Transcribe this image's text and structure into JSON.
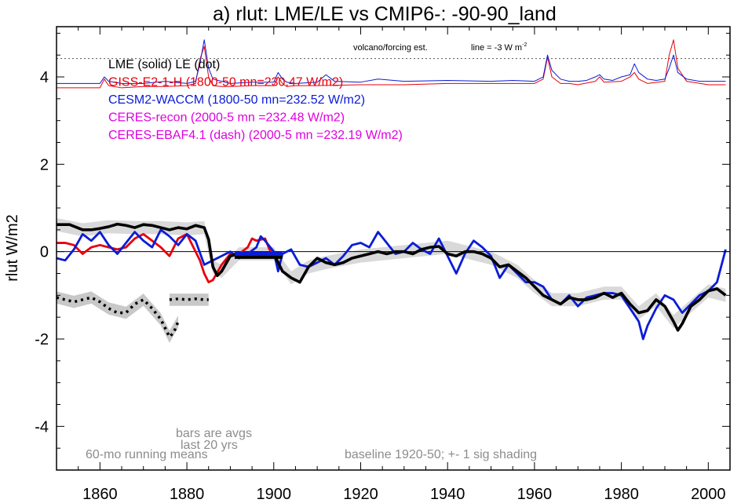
{
  "chart_data": {
    "type": "line",
    "title": "a) rlut: LME/LE vs CMIP6-: -90-90_land",
    "ylabel": "rlut W/m2",
    "xlabel": "",
    "xlim": [
      1850,
      2005
    ],
    "ylim": [
      -5,
      5.15
    ],
    "x_ticks": [
      1860,
      1880,
      1900,
      1920,
      1940,
      1960,
      1980,
      2000
    ],
    "y_ticks": [
      4,
      2,
      0,
      -2,
      -4
    ],
    "y_tick_labels": [
      "4",
      "2",
      "0",
      "-2",
      "-4"
    ],
    "grid": false,
    "zero_line": 0,
    "annotations": {
      "volcano": "volcano/forcing est.",
      "line_note": "line = -3 W m",
      "line_note_sup": "-2",
      "bars_note_1": "bars are avgs",
      "bars_note_2": "last 20 yrs",
      "running_means": "60-mo running means",
      "baseline": "baseline 1920-50; +- 1 sig shading"
    },
    "reference_line": {
      "y": 4.42,
      "style": "dotted"
    },
    "legend": [
      {
        "text": "LME (solid)   LE (dot)",
        "color": "#000000"
      },
      {
        "text": "GISS-E2-1-H (1800-50 mn=230.47 W/m2)",
        "color": "#e8000b"
      },
      {
        "text": "CESM2-WACCM (1800-50 mn=232.52 W/m2)",
        "color": "#0a1cd6"
      },
      {
        "text": "CERES-recon (2000-5 mn =232.48 W/m2)",
        "color": "#e000e0"
      },
      {
        "text": "CERES-EBAF4.1 (dash) (2000-5 mn =232.19 W/m2)",
        "color": "#e000e0"
      }
    ],
    "series": [
      {
        "name": "LME (solid)",
        "color": "#000000",
        "style": "solid",
        "x": [
          1850,
          1853,
          1856,
          1858,
          1860,
          1862,
          1864,
          1866,
          1868,
          1870,
          1872,
          1874,
          1876,
          1878,
          1880,
          1882,
          1884,
          1885,
          1886,
          1887,
          1888,
          1890,
          1892,
          1894,
          1896,
          1898,
          1900,
          1902,
          1904,
          1906,
          1908,
          1910,
          1912,
          1914,
          1916,
          1918,
          1920,
          1922,
          1924,
          1926,
          1928,
          1930,
          1932,
          1934,
          1936,
          1938,
          1940,
          1942,
          1944,
          1946,
          1948,
          1950,
          1952,
          1954,
          1956,
          1958,
          1960,
          1962,
          1964,
          1966,
          1968,
          1970,
          1972,
          1974,
          1976,
          1978,
          1980,
          1982,
          1984,
          1986,
          1988,
          1990,
          1992,
          1993,
          1994,
          1996,
          1998,
          2000,
          2002,
          2004
        ],
        "values": [
          0.62,
          0.62,
          0.5,
          0.5,
          0.53,
          0.57,
          0.63,
          0.6,
          0.55,
          0.62,
          0.6,
          0.55,
          0.5,
          0.55,
          0.52,
          0.6,
          0.55,
          0.28,
          -0.35,
          -0.55,
          -0.45,
          -0.1,
          -0.05,
          -0.08,
          -0.05,
          -0.1,
          -0.05,
          -0.45,
          -0.6,
          -0.7,
          -0.35,
          -0.15,
          -0.25,
          -0.3,
          -0.25,
          -0.15,
          -0.1,
          -0.05,
          0.0,
          -0.05,
          0.0,
          0.0,
          -0.05,
          0.05,
          0.1,
          0.12,
          -0.05,
          -0.1,
          0.0,
          0.0,
          -0.05,
          -0.15,
          -0.35,
          -0.3,
          -0.45,
          -0.6,
          -0.8,
          -1.0,
          -1.1,
          -1.2,
          -1.05,
          -1.1,
          -1.1,
          -1.05,
          -0.95,
          -1.05,
          -0.95,
          -1.2,
          -1.4,
          -1.35,
          -1.1,
          -1.25,
          -1.6,
          -1.8,
          -1.65,
          -1.25,
          -1.1,
          -0.9,
          -0.85,
          -1.0
        ]
      },
      {
        "name": "LE (dot)",
        "color": "#000000",
        "style": "dotted",
        "x": [
          1850,
          1852,
          1854,
          1856,
          1858,
          1860,
          1862,
          1864,
          1866,
          1868,
          1870,
          1872,
          1874,
          1875,
          1876,
          1877,
          1878
        ],
        "values": [
          -1.05,
          -1.1,
          -1.15,
          -1.1,
          -1.05,
          -1.15,
          -1.3,
          -1.4,
          -1.4,
          -1.2,
          -1.1,
          -1.3,
          -1.55,
          -1.75,
          -1.95,
          -1.85,
          -1.6
        ]
      },
      {
        "name": "LE (dot) bar",
        "color": "#000000",
        "style": "dotted",
        "x": [
          1876,
          1878,
          1880,
          1882,
          1884,
          1885
        ],
        "values": [
          -1.1,
          -1.08,
          -1.1,
          -1.08,
          -1.1,
          -1.1
        ]
      },
      {
        "name": "GISS-E2-1-H",
        "color": "#e8000b",
        "style": "solid",
        "x": [
          1850,
          1852,
          1854,
          1856,
          1858,
          1860,
          1862,
          1864,
          1866,
          1868,
          1870,
          1872,
          1874,
          1876,
          1878,
          1880,
          1882,
          1883,
          1884,
          1885,
          1886,
          1888,
          1890,
          1892,
          1894,
          1895,
          1896,
          1898,
          1899,
          1900
        ],
        "values": [
          0.2,
          0.2,
          0.15,
          -0.05,
          0.1,
          0.15,
          0.1,
          0.05,
          0.1,
          0.3,
          0.4,
          0.25,
          0.1,
          -0.1,
          0.3,
          0.4,
          0.0,
          -0.2,
          -0.5,
          -0.7,
          -0.65,
          -0.3,
          -0.05,
          -0.05,
          0.1,
          0.3,
          0.25,
          0.3,
          0.05,
          -0.05
        ]
      },
      {
        "name": "CESM2-WACCM",
        "color": "#0a1cd6",
        "style": "solid",
        "x": [
          1850,
          1852,
          1854,
          1856,
          1858,
          1860,
          1862,
          1864,
          1866,
          1868,
          1870,
          1872,
          1874,
          1876,
          1878,
          1880,
          1882,
          1884,
          1886,
          1888,
          1890,
          1892,
          1894,
          1896,
          1897,
          1898,
          1900,
          1901,
          1902,
          1904,
          1906,
          1908,
          1910,
          1912,
          1914,
          1916,
          1918,
          1920,
          1922,
          1924,
          1926,
          1928,
          1930,
          1932,
          1934,
          1936,
          1938,
          1940,
          1942,
          1944,
          1946,
          1948,
          1950,
          1952,
          1954,
          1956,
          1958,
          1960,
          1962,
          1964,
          1966,
          1968,
          1970,
          1972,
          1974,
          1976,
          1978,
          1980,
          1982,
          1984,
          1985,
          1986,
          1988,
          1990,
          1992,
          1994,
          1996,
          1998,
          2000,
          2002,
          2004
        ],
        "values": [
          -0.15,
          -0.2,
          0.05,
          0.4,
          0.25,
          0.45,
          0.15,
          -0.05,
          0.2,
          0.45,
          0.25,
          0.1,
          0.5,
          0.35,
          0.15,
          0.4,
          0.25,
          -0.3,
          -0.2,
          -0.1,
          0.0,
          -0.15,
          -0.05,
          0.1,
          0.35,
          0.25,
          0.0,
          -0.45,
          -0.05,
          0.05,
          -0.3,
          -0.35,
          -0.25,
          -0.15,
          -0.3,
          -0.1,
          0.15,
          0.2,
          0.1,
          0.45,
          0.2,
          -0.05,
          0.0,
          0.2,
          0.05,
          -0.05,
          0.3,
          -0.1,
          -0.5,
          -0.05,
          0.25,
          0.1,
          -0.1,
          -0.6,
          -0.3,
          -0.5,
          -0.7,
          -0.7,
          -0.8,
          -1.1,
          -1.2,
          -1.0,
          -1.25,
          -1.05,
          -1.0,
          -0.95,
          -0.95,
          -1.0,
          -1.3,
          -1.6,
          -2.0,
          -1.7,
          -1.3,
          -1.0,
          -1.1,
          -1.4,
          -1.2,
          -1.0,
          -0.9,
          -0.7,
          0.05
        ]
      },
      {
        "name": "bar CESM2-WACCM",
        "color": "#0a1cd6",
        "style": "bar",
        "x": [
          1891,
          1902
        ],
        "values": [
          -0.05,
          -0.05
        ]
      },
      {
        "name": "bar LME",
        "color": "#000000",
        "style": "bar",
        "x": [
          1891,
          1902
        ],
        "values": [
          -0.12,
          -0.12
        ]
      },
      {
        "name": "forcing CESM2-WACCM",
        "color": "#0a1cd6",
        "style": "thin",
        "x": [
          1850,
          1855,
          1860,
          1861,
          1862,
          1865,
          1870,
          1875,
          1880,
          1882,
          1883,
          1884,
          1885,
          1886,
          1888,
          1890,
          1895,
          1900,
          1901,
          1902,
          1903,
          1905,
          1910,
          1912,
          1914,
          1920,
          1924,
          1930,
          1940,
          1950,
          1955,
          1960,
          1962,
          1963,
          1964,
          1966,
          1968,
          1970,
          1972,
          1974,
          1975,
          1976,
          1978,
          1980,
          1982,
          1983,
          1984,
          1986,
          1988,
          1990,
          1991,
          1992,
          1993,
          1995,
          1998,
          2000,
          2004
        ],
        "values": [
          3.85,
          3.85,
          3.85,
          4.0,
          3.9,
          3.85,
          3.85,
          3.9,
          3.85,
          3.9,
          4.3,
          4.85,
          4.2,
          3.95,
          3.9,
          3.85,
          3.88,
          3.88,
          4.1,
          3.95,
          3.88,
          3.85,
          3.88,
          4.05,
          3.9,
          3.88,
          3.95,
          3.9,
          3.92,
          3.9,
          3.92,
          3.9,
          4.0,
          4.5,
          4.15,
          3.95,
          3.9,
          3.9,
          3.92,
          4.0,
          4.05,
          3.95,
          3.92,
          4.0,
          4.05,
          4.3,
          4.1,
          3.95,
          3.92,
          3.95,
          4.2,
          4.5,
          4.1,
          3.95,
          3.9,
          3.9,
          3.9
        ]
      },
      {
        "name": "forcing GISS-E2-1-H",
        "color": "#e8000b",
        "style": "thin",
        "x": [
          1850,
          1855,
          1860,
          1861,
          1862,
          1865,
          1870,
          1875,
          1880,
          1882,
          1883,
          1884,
          1885,
          1886,
          1888,
          1890,
          1895,
          1900,
          1901,
          1902,
          1903,
          1905,
          1910,
          1920,
          1930,
          1940,
          1950,
          1960,
          1962,
          1963,
          1964,
          1966,
          1968,
          1970,
          1974,
          1975,
          1976,
          1980,
          1982,
          1983,
          1984,
          1986,
          1990,
          1991,
          1992,
          1993,
          1995,
          2000,
          2004
        ],
        "values": [
          3.75,
          3.75,
          3.75,
          3.95,
          3.8,
          3.75,
          3.78,
          3.78,
          3.8,
          3.85,
          4.4,
          4.7,
          4.0,
          3.8,
          3.78,
          3.78,
          3.8,
          3.8,
          4.0,
          3.85,
          3.78,
          3.8,
          3.8,
          3.82,
          3.82,
          3.85,
          3.85,
          3.85,
          3.95,
          4.45,
          4.0,
          3.85,
          3.85,
          3.82,
          3.9,
          4.0,
          3.88,
          3.9,
          4.0,
          4.1,
          3.95,
          3.85,
          3.9,
          4.5,
          4.85,
          4.2,
          3.9,
          3.82,
          3.82
        ]
      }
    ],
    "shading": [
      {
        "name": "LME shading",
        "color": "#d9d9d9",
        "x": [
          1850,
          1856,
          1862,
          1868,
          1874,
          1880,
          1884,
          1886,
          1888,
          1892,
          1896,
          1900,
          1904,
          1908,
          1912,
          1920,
          1930,
          1940,
          1950,
          1956,
          1960,
          1964,
          1970,
          1976,
          1980,
          1984,
          1988,
          1992,
          1996,
          2000,
          2004
        ],
        "values": [
          0.62,
          0.5,
          0.57,
          0.55,
          0.55,
          0.52,
          0.55,
          -0.35,
          -0.45,
          -0.05,
          -0.05,
          -0.05,
          -0.6,
          -0.35,
          -0.25,
          -0.1,
          0.0,
          0.1,
          -0.15,
          -0.45,
          -0.8,
          -1.1,
          -1.1,
          -0.95,
          -0.95,
          -1.4,
          -1.1,
          -1.6,
          -1.25,
          -0.9,
          -1.0
        ],
        "spread": 0.15
      },
      {
        "name": "LE shading",
        "color": "#c8c8c8",
        "x": [
          1850,
          1854,
          1858,
          1862,
          1866,
          1870,
          1874,
          1876,
          1878
        ],
        "values": [
          -1.05,
          -1.15,
          -1.05,
          -1.3,
          -1.4,
          -1.1,
          -1.55,
          -1.95,
          -1.6
        ],
        "spread": 0.14
      },
      {
        "name": "LE bar shading",
        "color": "#c8c8c8",
        "x": [
          1876,
          1880,
          1885
        ],
        "values": [
          -1.1,
          -1.1,
          -1.1
        ],
        "spread": 0.14
      }
    ]
  }
}
